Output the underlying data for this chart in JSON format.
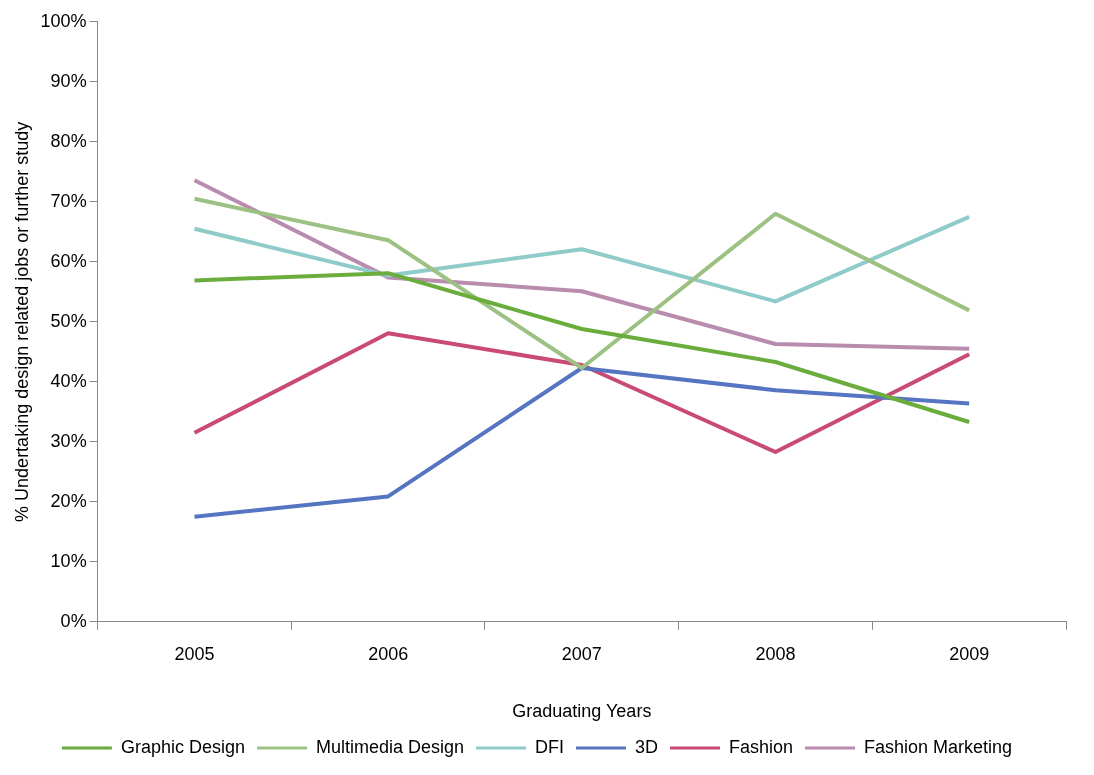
{
  "chart_data": {
    "type": "line",
    "xlabel": "Graduating Years",
    "ylabel": "% Undertaking design related jobs or further study",
    "categories": [
      "2005",
      "2006",
      "2007",
      "2008",
      "2009"
    ],
    "series": [
      {
        "name": "Graphic Design",
        "color": "#6aad3d",
        "values": [
          56.9,
          58.1,
          48.8,
          43.3,
          33.3
        ]
      },
      {
        "name": "Multimedia Design",
        "color": "#9dc183",
        "values": [
          70.5,
          63.6,
          42.3,
          68.0,
          51.9
        ]
      },
      {
        "name": "DFI",
        "color": "#8ecbc9",
        "values": [
          65.5,
          57.7,
          62.1,
          53.4,
          67.5
        ]
      },
      {
        "name": "3D",
        "color": "#5574c2",
        "values": [
          17.5,
          20.9,
          42.3,
          38.6,
          36.4
        ]
      },
      {
        "name": "Fashion",
        "color": "#c94a72",
        "values": [
          31.5,
          48.1,
          42.8,
          28.3,
          44.6
        ]
      },
      {
        "name": "Fashion Marketing",
        "color": "#b98cae",
        "values": [
          73.6,
          57.4,
          55.1,
          46.3,
          45.5
        ]
      }
    ],
    "ylim": [
      0,
      100
    ],
    "yticks": [
      {
        "value": 0,
        "label": "0%"
      },
      {
        "value": 10,
        "label": "10%"
      },
      {
        "value": 20,
        "label": "20%"
      },
      {
        "value": 30,
        "label": "30%"
      },
      {
        "value": 40,
        "label": "40%"
      },
      {
        "value": 50,
        "label": "50%"
      },
      {
        "value": 60,
        "label": "60%"
      },
      {
        "value": 70,
        "label": "70%"
      },
      {
        "value": 80,
        "label": "80%"
      },
      {
        "value": 90,
        "label": "90%"
      },
      {
        "value": 100,
        "label": "100%"
      }
    ],
    "grid": false,
    "legend": "bottom",
    "marker": "none",
    "line_style": "solid"
  }
}
